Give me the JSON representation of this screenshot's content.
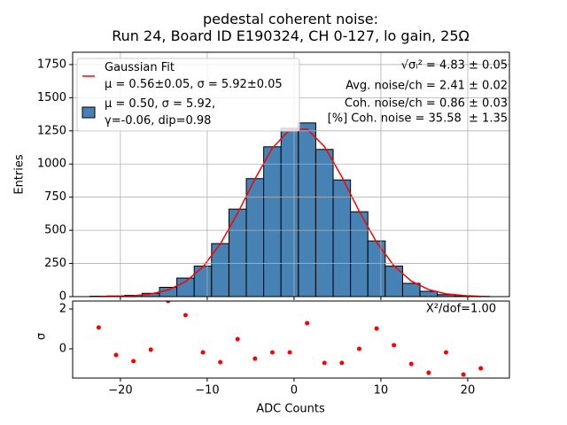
{
  "chart_data": [
    {
      "type": "histogram",
      "title": "pedestal coherent noise:\nRun 24, Board ID E190324, CH 0-127, lo gain, 25Ω",
      "ylabel": "Entries",
      "bins": [
        -23.5,
        -21.5,
        -19.5,
        -17.5,
        -15.5,
        -13.5,
        -11.5,
        -9.5,
        -7.5,
        -5.5,
        -3.5,
        -1.5,
        0.5,
        2.5,
        4.5,
        6.5,
        8.5,
        10.5,
        12.5,
        14.5,
        16.5,
        18.5,
        20.5,
        22.5
      ],
      "counts": [
        3,
        5,
        10,
        25,
        70,
        140,
        230,
        400,
        660,
        890,
        1130,
        1270,
        1310,
        1110,
        880,
        640,
        420,
        230,
        100,
        40,
        15,
        5,
        2
      ],
      "color": "#4682b4",
      "hist_name": "μ = 0.50, σ = 5.92,\nγ=-0.06, dip=0.98",
      "fit": {
        "type": "line",
        "name": "Gaussian Fit\nμ = 0.56±0.05, σ = 5.92±0.05",
        "color": "#ff0000",
        "x": [
          -22.5,
          -20.5,
          -18.5,
          -16.5,
          -14.5,
          -12.5,
          -10.5,
          -8.5,
          -6.5,
          -4.5,
          -2.5,
          -0.5,
          1.5,
          3.5,
          5.5,
          7.5,
          9.5,
          11.5,
          13.5,
          15.5,
          17.5,
          19.5,
          21.5
        ],
        "values": [
          0.6,
          2.3,
          7,
          20,
          50,
          113,
          224,
          397,
          629,
          888,
          1120,
          1260,
          1264,
          1132,
          904,
          644,
          410,
          232,
          117,
          53,
          21,
          8,
          2
        ]
      },
      "annotations": [
        "√σᵢ² = 4.83 ± 0.05",
        "Avg. noise/ch = 2.41 ± 0.02",
        "Coh. noise/ch = 0.86 ± 0.03",
        "[%] Coh. noise = 35.58  ± 1.35"
      ],
      "legend": "upper left",
      "xlim": [
        -25.5,
        24.8
      ],
      "ylim": [
        0,
        1843
      ],
      "xticks": [
        -20,
        -10,
        0,
        10,
        20
      ],
      "yticks": [
        0,
        250,
        500,
        750,
        1000,
        1250,
        1500,
        1750
      ],
      "grid": true
    },
    {
      "type": "scatter",
      "xlabel": "ADC Counts",
      "ylabel": "σ",
      "x": [
        -22.5,
        -20.5,
        -18.5,
        -16.5,
        -14.5,
        -12.5,
        -10.5,
        -8.5,
        -6.5,
        -4.5,
        -2.5,
        -0.5,
        1.5,
        3.5,
        5.5,
        7.5,
        9.5,
        11.5,
        13.5,
        15.5,
        17.5,
        19.5,
        21.5
      ],
      "values": [
        1.07,
        -0.31,
        -0.62,
        -0.04,
        2.4,
        1.69,
        -0.18,
        -0.67,
        0.49,
        -0.49,
        -0.18,
        -0.18,
        1.29,
        -0.71,
        -0.71,
        0,
        1.02,
        0.18,
        -0.76,
        -1.2,
        -0.18,
        -1.29,
        -0.98
      ],
      "color": "#ff0000",
      "annotation": "X²/dof=1.00",
      "xlim": [
        -25.5,
        24.8
      ],
      "ylim": [
        -1.47,
        2.4
      ],
      "xticks": [
        {
          "value": -20,
          "label": "−20"
        },
        {
          "value": -10,
          "label": "−10"
        },
        0,
        10,
        20
      ],
      "yticks": [
        0,
        2
      ],
      "grid": false
    }
  ]
}
